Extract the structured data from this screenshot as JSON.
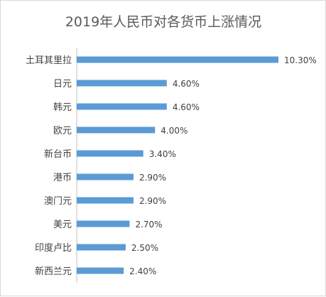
{
  "chart_data": {
    "type": "bar",
    "orientation": "horizontal",
    "title": "2019年人民币对各货币上涨情况",
    "categories": [
      "土耳其里拉",
      "日元",
      "韩元",
      "欧元",
      "新台币",
      "港币",
      "澳门元",
      "美元",
      "印度卢比",
      "新西兰元"
    ],
    "values": [
      10.3,
      4.6,
      4.6,
      4.0,
      3.4,
      2.9,
      2.9,
      2.7,
      2.5,
      2.4
    ],
    "value_labels": [
      "10.30%",
      "4.60%",
      "4.60%",
      "4.00%",
      "3.40%",
      "2.90%",
      "2.90%",
      "2.70%",
      "2.50%",
      "2.40%"
    ],
    "xlim": [
      0,
      11
    ],
    "grid": false,
    "bar_color": "#5b9bd5"
  }
}
